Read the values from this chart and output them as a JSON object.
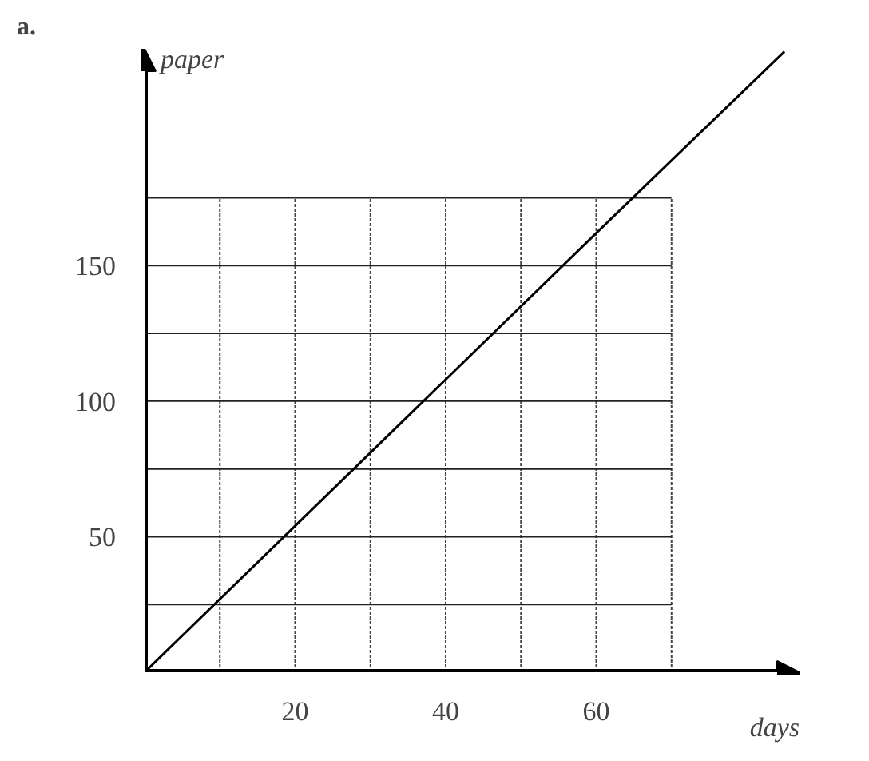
{
  "chart_data": {
    "type": "line",
    "title": "a.",
    "xlabel": "days",
    "ylabel": "paper",
    "x": [
      0,
      20,
      40,
      60,
      85
    ],
    "series": [
      {
        "color": "#000000",
        "values": [
          0,
          54,
          108,
          162,
          229
        ]
      }
    ],
    "xlim": [
      0,
      87
    ],
    "ylim": [
      0,
      230
    ],
    "xticks": [
      {
        "value": 10,
        "label": null
      },
      20,
      {
        "value": 30,
        "label": null
      },
      40,
      {
        "value": 50,
        "label": null
      },
      60,
      {
        "value": 70,
        "label": null
      }
    ],
    "yticks": [
      {
        "value": 25,
        "label": null
      },
      50,
      {
        "value": 75,
        "label": null
      },
      100,
      {
        "value": 125,
        "label": null
      },
      150,
      {
        "value": 175,
        "label": null
      }
    ],
    "grid": true,
    "marker": "none",
    "line_style": "solid"
  }
}
